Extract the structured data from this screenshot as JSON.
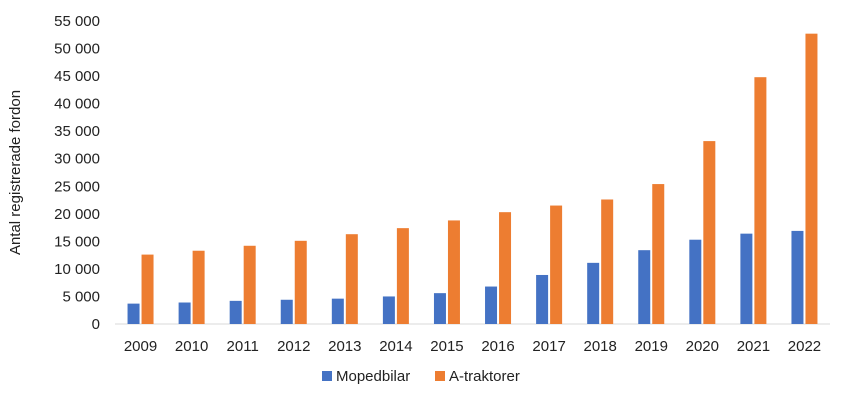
{
  "chart_data": {
    "type": "bar",
    "categories": [
      "2009",
      "2010",
      "2011",
      "2012",
      "2013",
      "2014",
      "2015",
      "2016",
      "2017",
      "2018",
      "2019",
      "2020",
      "2021",
      "2022"
    ],
    "series": [
      {
        "name": "Mopedbilar",
        "color": "#4472C4",
        "values": [
          3700,
          3900,
          4200,
          4400,
          4600,
          5000,
          5600,
          6800,
          8900,
          11100,
          13400,
          15300,
          16400,
          16900
        ]
      },
      {
        "name": "A-traktorer",
        "color": "#ED7D31",
        "values": [
          12600,
          13300,
          14200,
          15100,
          16300,
          17400,
          18800,
          20300,
          21500,
          22600,
          25400,
          33200,
          44800,
          52700
        ]
      }
    ],
    "ylabel": "Antal registrerade fordon",
    "xlabel": "",
    "ylim": [
      0,
      55000
    ],
    "yticks": [
      0,
      5000,
      10000,
      15000,
      20000,
      25000,
      30000,
      35000,
      40000,
      45000,
      50000,
      55000
    ],
    "ytick_labels": [
      "0",
      "5 000",
      "10 000",
      "15 000",
      "20 000",
      "25 000",
      "30 000",
      "35 000",
      "40 000",
      "45 000",
      "50 000",
      "55 000"
    ],
    "grid": false,
    "legend": "bottom"
  }
}
